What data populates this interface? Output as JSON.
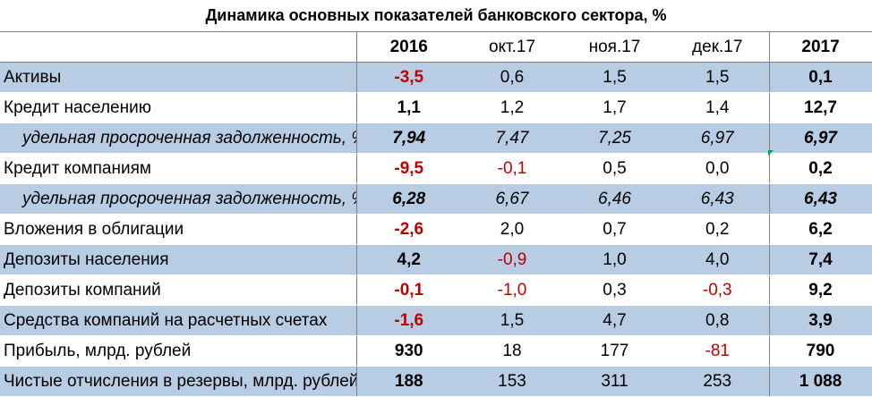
{
  "title": "Динамика основных показателей банковского сектора, %",
  "columns": [
    "2016",
    "окт.17",
    "ноя.17",
    "дек.17",
    "2017"
  ],
  "rows": [
    {
      "label": "Активы",
      "values": [
        "-3,5",
        "0,6",
        "1,5",
        "1,5",
        "0,1"
      ]
    },
    {
      "label": "Кредит населению",
      "values": [
        "1,1",
        "1,2",
        "1,7",
        "1,4",
        "12,7"
      ]
    },
    {
      "label": "удельная просроченная задолженность, %",
      "values": [
        "7,94",
        "7,47",
        "7,25",
        "6,97",
        "6,97"
      ]
    },
    {
      "label": "Кредит компаниям",
      "values": [
        "-9,5",
        "-0,1",
        "0,5",
        "0,0",
        "0,2"
      ]
    },
    {
      "label": "удельная просроченная задолженность, %",
      "values": [
        "6,28",
        "6,67",
        "6,46",
        "6,43",
        "6,43"
      ]
    },
    {
      "label": "Вложения в облигации",
      "values": [
        "-2,6",
        "2,0",
        "0,7",
        "0,2",
        "6,2"
      ]
    },
    {
      "label": "Депозиты населения",
      "values": [
        "4,2",
        "-0,9",
        "1,0",
        "4,0",
        "7,4"
      ]
    },
    {
      "label": "Депозиты компаний",
      "values": [
        "-0,1",
        "-1,0",
        "0,3",
        "-0,3",
        "9,2"
      ]
    },
    {
      "label": "Средства компаний на расчетных счетах",
      "values": [
        "-1,6",
        "1,5",
        "4,7",
        "0,8",
        "3,9"
      ]
    },
    {
      "label": "Прибыль, млрд. рублей",
      "values": [
        "930",
        "18",
        "177",
        "-81",
        "790"
      ]
    },
    {
      "label": "Чистые отчисления в резервы, млрд. рублей",
      "values": [
        "188",
        "153",
        "311",
        "253",
        "1 088"
      ]
    }
  ],
  "colors": {
    "negative": "#c00000",
    "row_shade": "#b8cce4",
    "cell_flag": "#00a651"
  }
}
